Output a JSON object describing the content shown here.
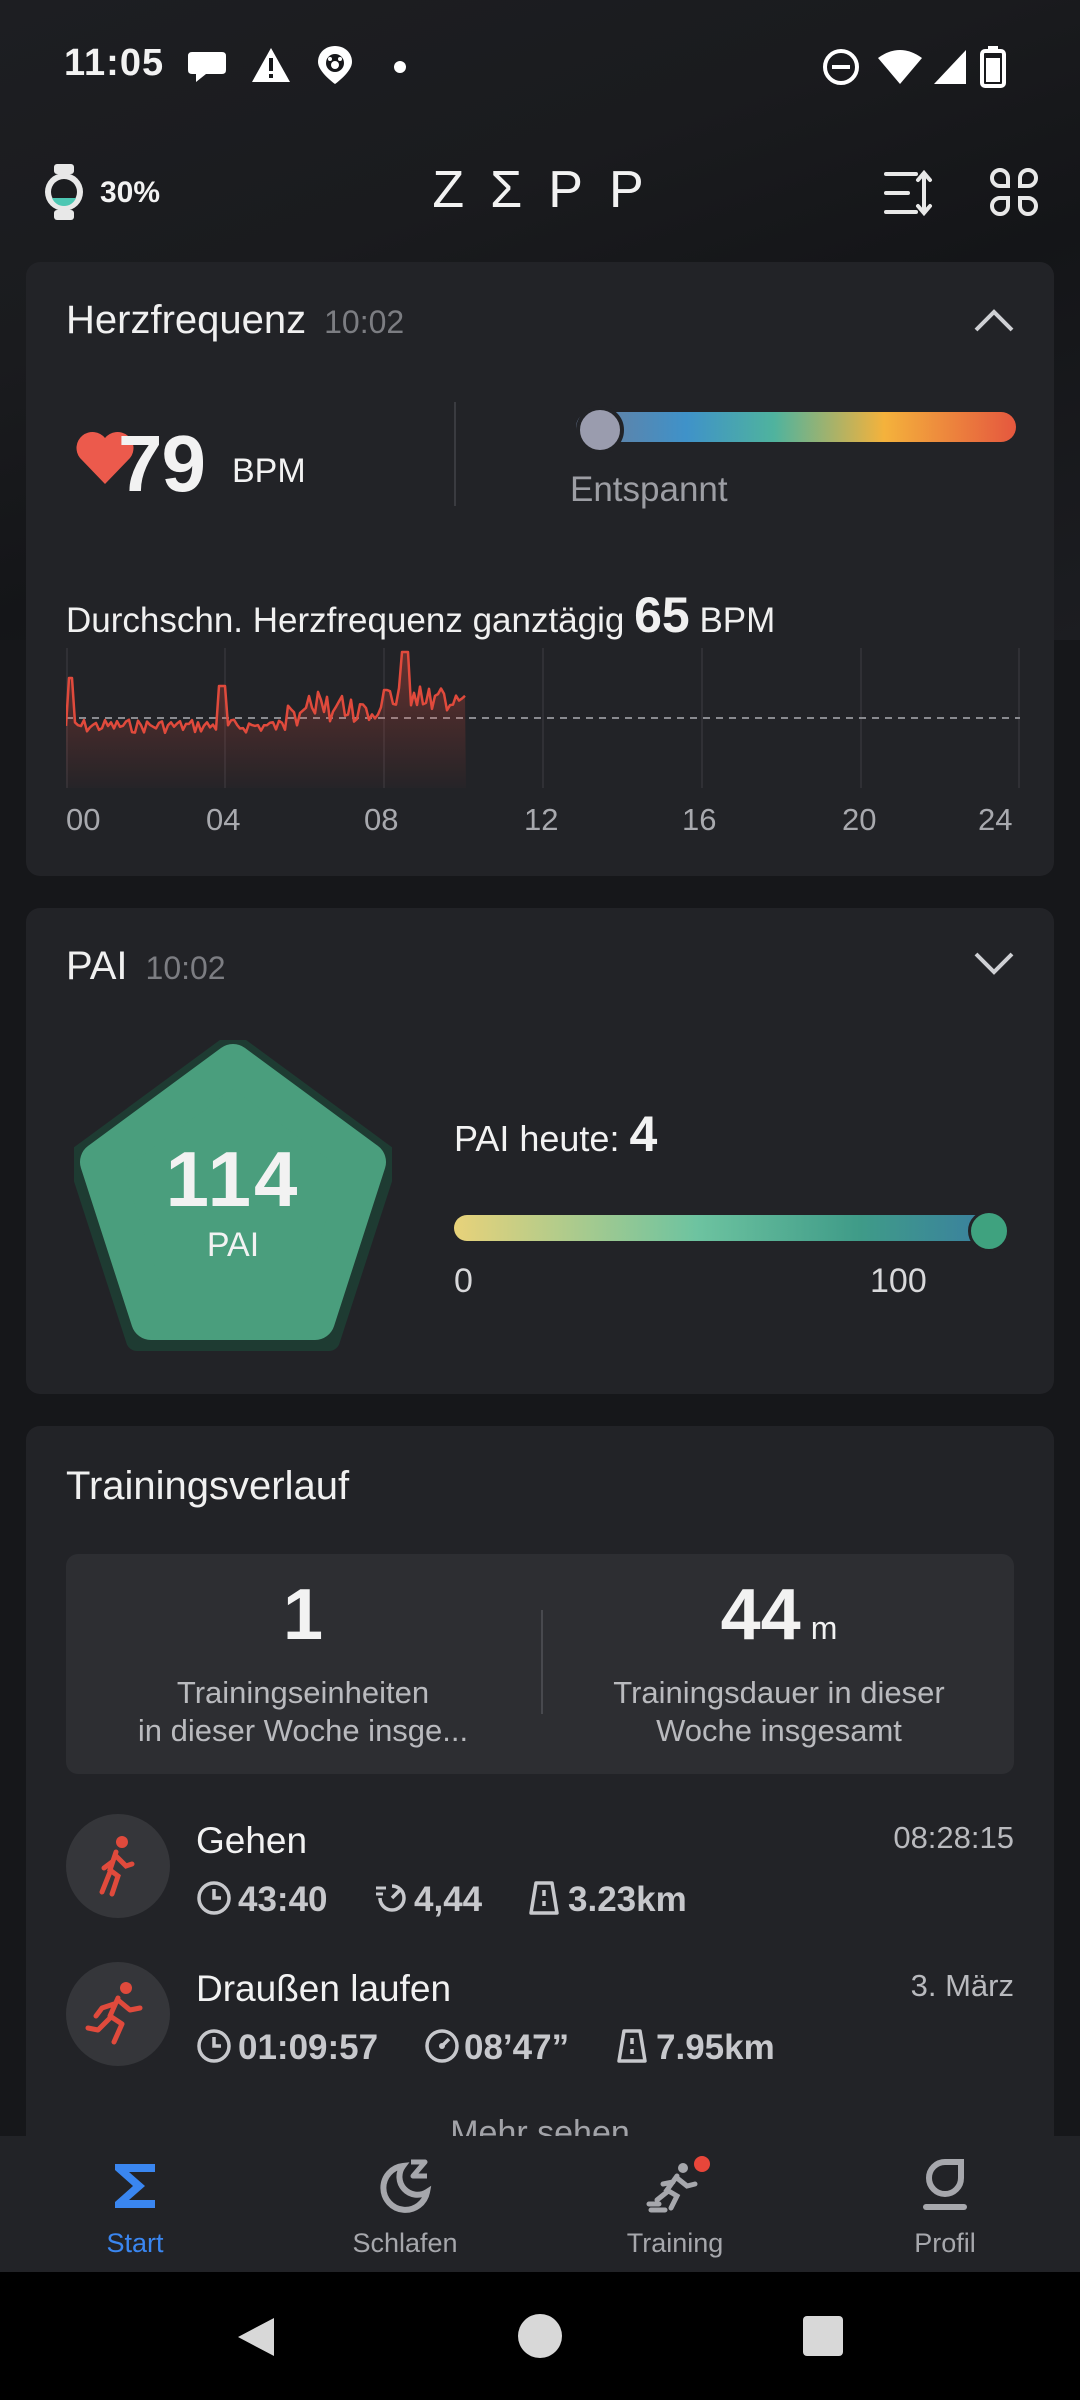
{
  "status_bar": {
    "time": "11:05",
    "notification_icons": [
      "chat-icon",
      "warning-icon",
      "paw-location-icon",
      "dot-icon"
    ],
    "system_icons": [
      "dnd-icon",
      "wifi-icon",
      "signal-icon",
      "battery-icon"
    ]
  },
  "header": {
    "device_battery": "30%",
    "brand": "ZΣPP",
    "icons": [
      "watch-icon",
      "sort-icon",
      "grid-icon"
    ]
  },
  "heart_rate": {
    "title": "Herzfrequenz",
    "time": "10:02",
    "value": "79",
    "unit": "BPM",
    "zone": "Entspannt",
    "zone_level": 0.03,
    "avg_label": "Durchschn. Herzfrequenz ganztägig",
    "avg_value": "65",
    "avg_unit": "BPM",
    "ticks": [
      "00",
      "04",
      "08",
      "12",
      "16",
      "20",
      "24"
    ],
    "colors": {
      "line": "#e04a3c",
      "heart": "#ec5a4c"
    }
  },
  "pai": {
    "title": "PAI",
    "time": "10:02",
    "total": "114",
    "total_label": "PAI",
    "today_label": "PAI heute:",
    "today_value": "4",
    "scale_min": "0",
    "scale_max": "100",
    "progress": 1.0,
    "colors": {
      "badge": "#4a9e7d",
      "ring": "#1e3b32"
    }
  },
  "training": {
    "title": "Trainingsverlauf",
    "sessions_count": "1",
    "sessions_label_1": "Trainingseinheiten",
    "sessions_label_2": "in dieser Woche insge...",
    "duration_value": "44",
    "duration_unit": "m",
    "duration_label_1": "Trainingsdauer in dieser",
    "duration_label_2": "Woche insgesamt",
    "activities": [
      {
        "name": "Gehen",
        "date": "08:28:15",
        "duration": "43:40",
        "pace": "4,44",
        "distance": "3.23km"
      },
      {
        "name": "Draußen laufen",
        "date": "3. März",
        "duration": "01:09:57",
        "pace": "08’47”",
        "distance": "7.95km"
      }
    ],
    "more": "Mehr sehen"
  },
  "bottom_nav": [
    {
      "label": "Start",
      "icon": "sigma-icon",
      "active": true
    },
    {
      "label": "Schlafen",
      "icon": "moon-icon",
      "active": false
    },
    {
      "label": "Training",
      "icon": "runner-icon",
      "active": false
    },
    {
      "label": "Profil",
      "icon": "profile-icon",
      "active": false
    }
  ],
  "accent_color": "#3a86f0"
}
